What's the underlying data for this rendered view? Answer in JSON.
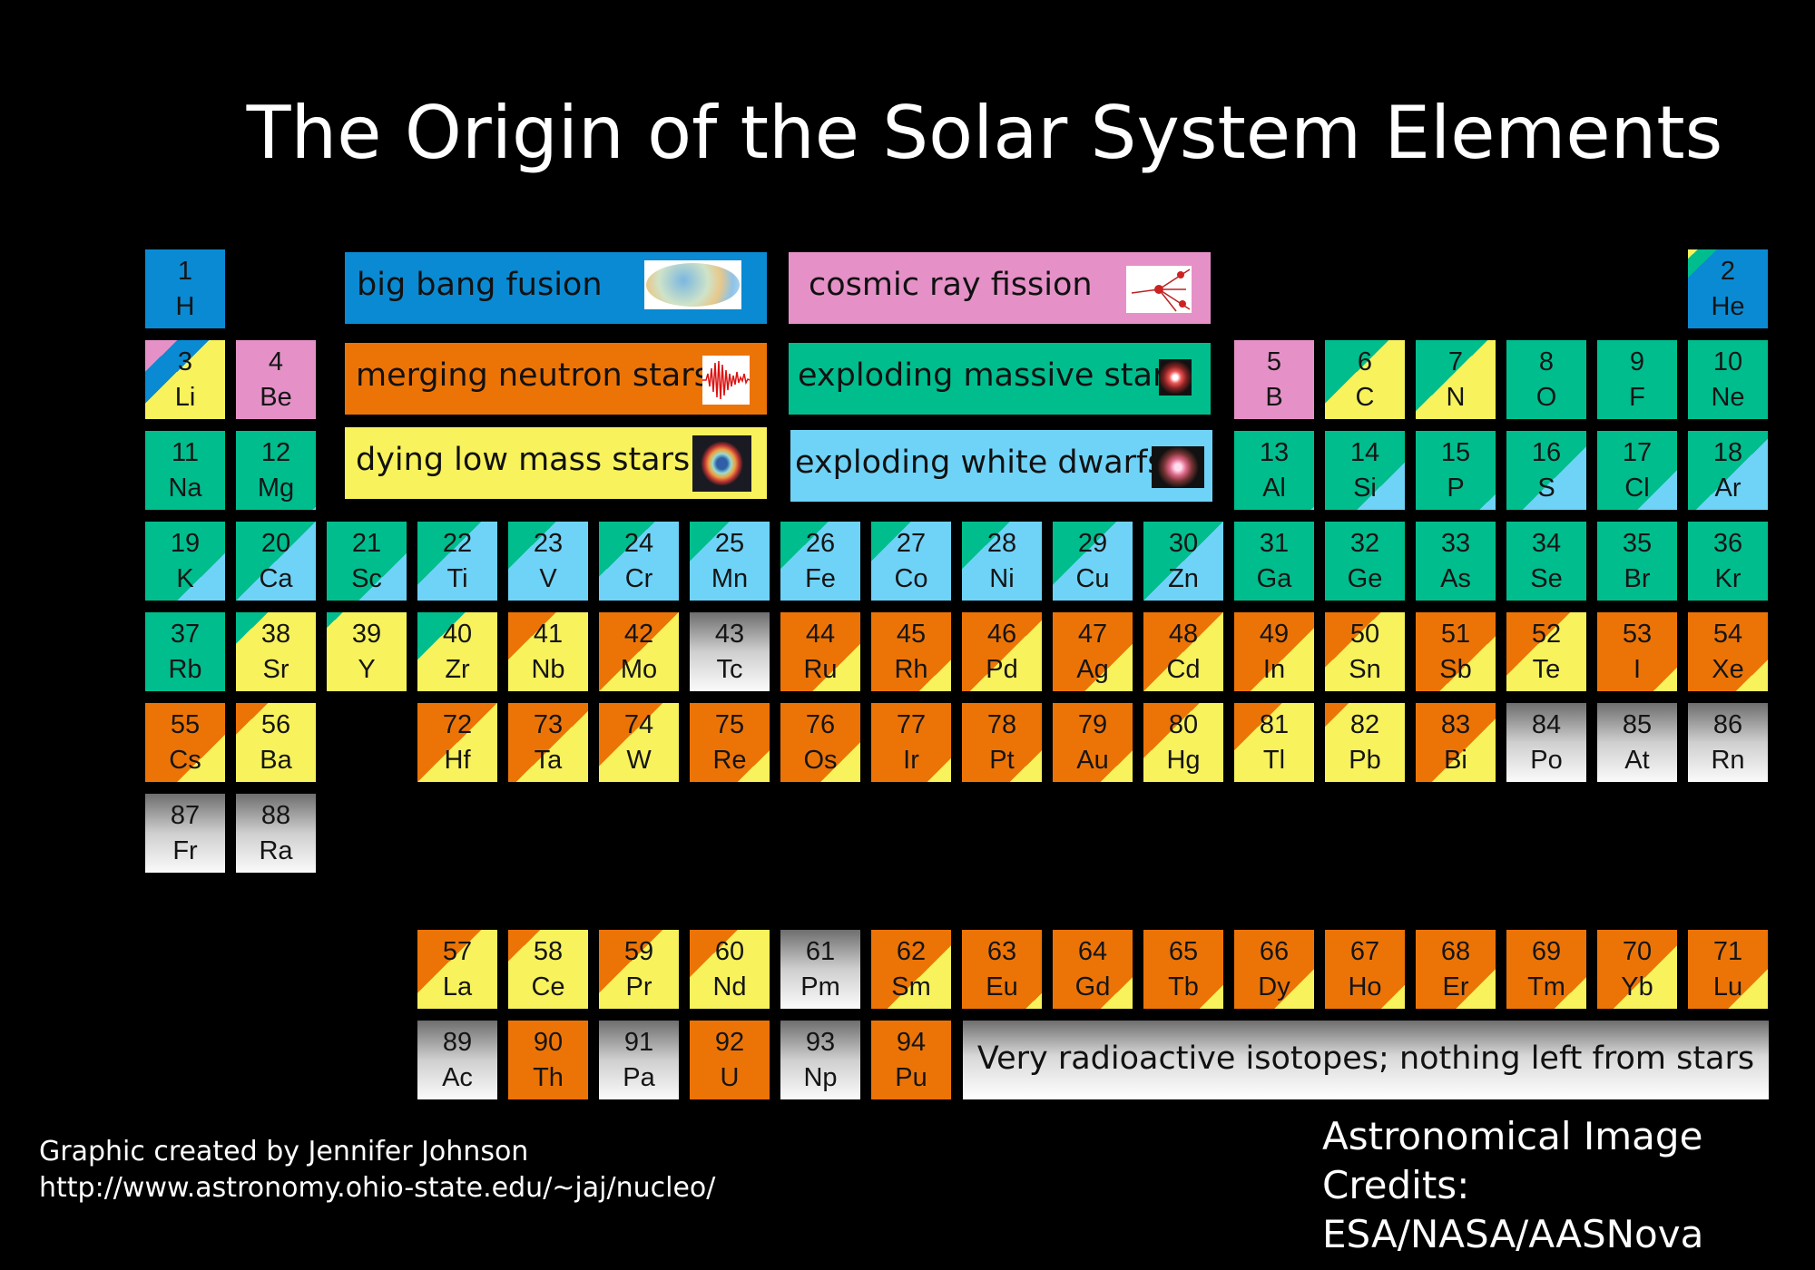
{
  "title": "The Origin of the Solar System Elements",
  "colors": {
    "bigbang": "#0a8ad3",
    "cosmic": "#e591c8",
    "neutron": "#ec7407",
    "massive": "#00bd8e",
    "lowmass": "#f8f25c",
    "whitedwarf": "#6fd3f7",
    "radioactive": "gray-gradient"
  },
  "legend": {
    "bigbang": {
      "label": "big bang fusion",
      "icon": "cosmic-microwave-background-image"
    },
    "cosmic": {
      "label": "cosmic ray fission",
      "icon": "cosmic-ray-collision-image"
    },
    "neutron": {
      "label": "merging neutron stars?",
      "icon": "gravitational-wave-image"
    },
    "massive": {
      "label": "exploding massive stars",
      "icon": "supernova-remnant-image"
    },
    "lowmass": {
      "label": "dying low mass stars",
      "icon": "planetary-nebula-image"
    },
    "whitedwarf": {
      "label": "exploding white dwarfs",
      "icon": "white-dwarf-supernova-image"
    }
  },
  "radioactive_note": "Very radioactive isotopes; nothing left from stars",
  "credits": {
    "author": "Graphic created by Jennifer Johnson",
    "url": "http://www.astronomy.ohio-state.edu/~jaj/nucleo/",
    "image_credits_title": "Astronomical Image Credits:",
    "image_credits": "ESA/NASA/AASNova"
  },
  "elements": [
    {
      "n": "1",
      "s": "H",
      "src": [
        [
          "bigbang",
          1
        ]
      ]
    },
    {
      "n": "2",
      "s": "He",
      "src": [
        [
          "lowmass",
          0.06
        ],
        [
          "massive",
          0.12
        ],
        [
          "bigbang",
          0.82
        ]
      ]
    },
    {
      "n": "3",
      "s": "Li",
      "src": [
        [
          "cosmic",
          0.2
        ],
        [
          "bigbang",
          0.2
        ],
        [
          "lowmass",
          0.6
        ]
      ]
    },
    {
      "n": "4",
      "s": "Be",
      "src": [
        [
          "cosmic",
          1
        ]
      ]
    },
    {
      "n": "5",
      "s": "B",
      "src": [
        [
          "cosmic",
          1
        ]
      ]
    },
    {
      "n": "6",
      "s": "C",
      "src": [
        [
          "massive",
          0.4
        ],
        [
          "lowmass",
          0.6
        ]
      ]
    },
    {
      "n": "7",
      "s": "N",
      "src": [
        [
          "massive",
          0.45
        ],
        [
          "lowmass",
          0.55
        ]
      ]
    },
    {
      "n": "8",
      "s": "O",
      "src": [
        [
          "massive",
          1
        ]
      ]
    },
    {
      "n": "9",
      "s": "F",
      "src": [
        [
          "massive",
          1
        ]
      ]
    },
    {
      "n": "10",
      "s": "Ne",
      "src": [
        [
          "massive",
          1
        ]
      ]
    },
    {
      "n": "11",
      "s": "Na",
      "src": [
        [
          "massive",
          1
        ]
      ]
    },
    {
      "n": "12",
      "s": "Mg",
      "src": [
        [
          "massive",
          0.98
        ],
        [
          "whitedwarf",
          0.02
        ]
      ]
    },
    {
      "n": "13",
      "s": "Al",
      "src": [
        [
          "massive",
          0.98
        ],
        [
          "whitedwarf",
          0.02
        ]
      ]
    },
    {
      "n": "14",
      "s": "Si",
      "src": [
        [
          "massive",
          0.7
        ],
        [
          "whitedwarf",
          0.3
        ]
      ]
    },
    {
      "n": "15",
      "s": "P",
      "src": [
        [
          "massive",
          0.9
        ],
        [
          "whitedwarf",
          0.1
        ]
      ]
    },
    {
      "n": "16",
      "s": "S",
      "src": [
        [
          "massive",
          0.6
        ],
        [
          "whitedwarf",
          0.4
        ]
      ]
    },
    {
      "n": "17",
      "s": "Cl",
      "src": [
        [
          "massive",
          0.75
        ],
        [
          "whitedwarf",
          0.25
        ]
      ]
    },
    {
      "n": "18",
      "s": "Ar",
      "src": [
        [
          "massive",
          0.55
        ],
        [
          "whitedwarf",
          0.45
        ]
      ]
    },
    {
      "n": "19",
      "s": "K",
      "src": [
        [
          "massive",
          0.7
        ],
        [
          "whitedwarf",
          0.3
        ]
      ]
    },
    {
      "n": "20",
      "s": "Ca",
      "src": [
        [
          "massive",
          0.5
        ],
        [
          "whitedwarf",
          0.5
        ]
      ]
    },
    {
      "n": "21",
      "s": "Sc",
      "src": [
        [
          "massive",
          0.7
        ],
        [
          "whitedwarf",
          0.3
        ]
      ]
    },
    {
      "n": "22",
      "s": "Ti",
      "src": [
        [
          "massive",
          0.4
        ],
        [
          "whitedwarf",
          0.6
        ]
      ]
    },
    {
      "n": "23",
      "s": "V",
      "src": [
        [
          "massive",
          0.3
        ],
        [
          "whitedwarf",
          0.7
        ]
      ]
    },
    {
      "n": "24",
      "s": "Cr",
      "src": [
        [
          "massive",
          0.35
        ],
        [
          "whitedwarf",
          0.65
        ]
      ]
    },
    {
      "n": "25",
      "s": "Mn",
      "src": [
        [
          "massive",
          0.25
        ],
        [
          "whitedwarf",
          0.75
        ]
      ]
    },
    {
      "n": "26",
      "s": "Fe",
      "src": [
        [
          "massive",
          0.3
        ],
        [
          "whitedwarf",
          0.7
        ]
      ]
    },
    {
      "n": "27",
      "s": "Co",
      "src": [
        [
          "massive",
          0.25
        ],
        [
          "whitedwarf",
          0.75
        ]
      ]
    },
    {
      "n": "28",
      "s": "Ni",
      "src": [
        [
          "massive",
          0.3
        ],
        [
          "whitedwarf",
          0.7
        ]
      ]
    },
    {
      "n": "29",
      "s": "Cu",
      "src": [
        [
          "massive",
          0.4
        ],
        [
          "whitedwarf",
          0.6
        ]
      ]
    },
    {
      "n": "30",
      "s": "Zn",
      "src": [
        [
          "massive",
          0.5
        ],
        [
          "whitedwarf",
          0.5
        ]
      ]
    },
    {
      "n": "31",
      "s": "Ga",
      "src": [
        [
          "massive",
          1
        ]
      ]
    },
    {
      "n": "32",
      "s": "Ge",
      "src": [
        [
          "massive",
          1
        ]
      ]
    },
    {
      "n": "33",
      "s": "As",
      "src": [
        [
          "massive",
          1
        ]
      ]
    },
    {
      "n": "34",
      "s": "Se",
      "src": [
        [
          "massive",
          1
        ]
      ]
    },
    {
      "n": "35",
      "s": "Br",
      "src": [
        [
          "massive",
          1
        ]
      ]
    },
    {
      "n": "36",
      "s": "Kr",
      "src": [
        [
          "massive",
          1
        ]
      ]
    },
    {
      "n": "37",
      "s": "Rb",
      "src": [
        [
          "massive",
          1
        ]
      ]
    },
    {
      "n": "38",
      "s": "Sr",
      "src": [
        [
          "massive",
          0.2
        ],
        [
          "lowmass",
          0.8
        ]
      ]
    },
    {
      "n": "39",
      "s": "Y",
      "src": [
        [
          "massive",
          0.1
        ],
        [
          "lowmass",
          0.9
        ]
      ]
    },
    {
      "n": "40",
      "s": "Zr",
      "src": [
        [
          "massive",
          0.3
        ],
        [
          "lowmass",
          0.7
        ]
      ]
    },
    {
      "n": "41",
      "s": "Nb",
      "src": [
        [
          "neutron",
          0.3
        ],
        [
          "lowmass",
          0.7
        ]
      ]
    },
    {
      "n": "42",
      "s": "Mo",
      "src": [
        [
          "neutron",
          0.5
        ],
        [
          "lowmass",
          0.5
        ]
      ]
    },
    {
      "n": "43",
      "s": "Tc",
      "src": [
        [
          "radioactive",
          1
        ]
      ]
    },
    {
      "n": "44",
      "s": "Ru",
      "src": [
        [
          "neutron",
          0.7
        ],
        [
          "lowmass",
          0.3
        ]
      ]
    },
    {
      "n": "45",
      "s": "Rh",
      "src": [
        [
          "neutron",
          0.8
        ],
        [
          "lowmass",
          0.2
        ]
      ]
    },
    {
      "n": "46",
      "s": "Pd",
      "src": [
        [
          "neutron",
          0.55
        ],
        [
          "lowmass",
          0.45
        ]
      ]
    },
    {
      "n": "47",
      "s": "Ag",
      "src": [
        [
          "neutron",
          0.7
        ],
        [
          "lowmass",
          0.3
        ]
      ]
    },
    {
      "n": "48",
      "s": "Cd",
      "src": [
        [
          "neutron",
          0.5
        ],
        [
          "lowmass",
          0.5
        ]
      ]
    },
    {
      "n": "49",
      "s": "In",
      "src": [
        [
          "neutron",
          0.6
        ],
        [
          "lowmass",
          0.4
        ]
      ]
    },
    {
      "n": "50",
      "s": "Sn",
      "src": [
        [
          "neutron",
          0.35
        ],
        [
          "lowmass",
          0.65
        ]
      ]
    },
    {
      "n": "51",
      "s": "Sb",
      "src": [
        [
          "neutron",
          0.65
        ],
        [
          "lowmass",
          0.35
        ]
      ]
    },
    {
      "n": "52",
      "s": "Te",
      "src": [
        [
          "neutron",
          0.4
        ],
        [
          "lowmass",
          0.6
        ]
      ]
    },
    {
      "n": "53",
      "s": "I",
      "src": [
        [
          "neutron",
          0.85
        ],
        [
          "lowmass",
          0.15
        ]
      ]
    },
    {
      "n": "54",
      "s": "Xe",
      "src": [
        [
          "neutron",
          0.8
        ],
        [
          "lowmass",
          0.2
        ]
      ]
    },
    {
      "n": "55",
      "s": "Cs",
      "src": [
        [
          "neutron",
          0.7
        ],
        [
          "lowmass",
          0.3
        ]
      ]
    },
    {
      "n": "56",
      "s": "Ba",
      "src": [
        [
          "neutron",
          0.2
        ],
        [
          "lowmass",
          0.8
        ]
      ]
    },
    {
      "n": "57",
      "s": "La",
      "src": [
        [
          "neutron",
          0.4
        ],
        [
          "lowmass",
          0.6
        ]
      ]
    },
    {
      "n": "58",
      "s": "Ce",
      "src": [
        [
          "neutron",
          0.2
        ],
        [
          "lowmass",
          0.8
        ]
      ]
    },
    {
      "n": "59",
      "s": "Pr",
      "src": [
        [
          "neutron",
          0.4
        ],
        [
          "lowmass",
          0.6
        ]
      ]
    },
    {
      "n": "60",
      "s": "Nd",
      "src": [
        [
          "neutron",
          0.3
        ],
        [
          "lowmass",
          0.7
        ]
      ]
    },
    {
      "n": "61",
      "s": "Pm",
      "src": [
        [
          "radioactive",
          1
        ]
      ]
    },
    {
      "n": "62",
      "s": "Sm",
      "src": [
        [
          "neutron",
          0.6
        ],
        [
          "lowmass",
          0.4
        ]
      ]
    },
    {
      "n": "63",
      "s": "Eu",
      "src": [
        [
          "neutron",
          0.9
        ],
        [
          "lowmass",
          0.1
        ]
      ]
    },
    {
      "n": "64",
      "s": "Gd",
      "src": [
        [
          "neutron",
          0.8
        ],
        [
          "lowmass",
          0.2
        ]
      ]
    },
    {
      "n": "65",
      "s": "Tb",
      "src": [
        [
          "neutron",
          0.85
        ],
        [
          "lowmass",
          0.15
        ]
      ]
    },
    {
      "n": "66",
      "s": "Dy",
      "src": [
        [
          "neutron",
          0.75
        ],
        [
          "lowmass",
          0.25
        ]
      ]
    },
    {
      "n": "67",
      "s": "Ho",
      "src": [
        [
          "neutron",
          0.85
        ],
        [
          "lowmass",
          0.15
        ]
      ]
    },
    {
      "n": "68",
      "s": "Er",
      "src": [
        [
          "neutron",
          0.75
        ],
        [
          "lowmass",
          0.25
        ]
      ]
    },
    {
      "n": "69",
      "s": "Tm",
      "src": [
        [
          "neutron",
          0.8
        ],
        [
          "lowmass",
          0.2
        ]
      ]
    },
    {
      "n": "70",
      "s": "Yb",
      "src": [
        [
          "neutron",
          0.6
        ],
        [
          "lowmass",
          0.4
        ]
      ]
    },
    {
      "n": "71",
      "s": "Lu",
      "src": [
        [
          "neutron",
          0.75
        ],
        [
          "lowmass",
          0.25
        ]
      ]
    },
    {
      "n": "72",
      "s": "Hf",
      "src": [
        [
          "neutron",
          0.5
        ],
        [
          "lowmass",
          0.5
        ]
      ]
    },
    {
      "n": "73",
      "s": "Ta",
      "src": [
        [
          "neutron",
          0.55
        ],
        [
          "lowmass",
          0.45
        ]
      ]
    },
    {
      "n": "74",
      "s": "W",
      "src": [
        [
          "neutron",
          0.4
        ],
        [
          "lowmass",
          0.6
        ]
      ]
    },
    {
      "n": "75",
      "s": "Re",
      "src": [
        [
          "neutron",
          0.8
        ],
        [
          "lowmass",
          0.2
        ]
      ]
    },
    {
      "n": "76",
      "s": "Os",
      "src": [
        [
          "neutron",
          0.75
        ],
        [
          "lowmass",
          0.25
        ]
      ]
    },
    {
      "n": "77",
      "s": "Ir",
      "src": [
        [
          "neutron",
          0.85
        ],
        [
          "lowmass",
          0.15
        ]
      ]
    },
    {
      "n": "78",
      "s": "Pt",
      "src": [
        [
          "neutron",
          0.8
        ],
        [
          "lowmass",
          0.2
        ]
      ]
    },
    {
      "n": "79",
      "s": "Au",
      "src": [
        [
          "neutron",
          0.8
        ],
        [
          "lowmass",
          0.2
        ]
      ]
    },
    {
      "n": "80",
      "s": "Hg",
      "src": [
        [
          "neutron",
          0.35
        ],
        [
          "lowmass",
          0.65
        ]
      ]
    },
    {
      "n": "81",
      "s": "Tl",
      "src": [
        [
          "neutron",
          0.3
        ],
        [
          "lowmass",
          0.7
        ]
      ]
    },
    {
      "n": "82",
      "s": "Pb",
      "src": [
        [
          "neutron",
          0.15
        ],
        [
          "lowmass",
          0.85
        ]
      ]
    },
    {
      "n": "83",
      "s": "Bi",
      "src": [
        [
          "neutron",
          0.6
        ],
        [
          "lowmass",
          0.4
        ]
      ]
    },
    {
      "n": "84",
      "s": "Po",
      "src": [
        [
          "radioactive",
          1
        ]
      ]
    },
    {
      "n": "85",
      "s": "At",
      "src": [
        [
          "radioactive",
          1
        ]
      ]
    },
    {
      "n": "86",
      "s": "Rn",
      "src": [
        [
          "radioactive",
          1
        ]
      ]
    },
    {
      "n": "87",
      "s": "Fr",
      "src": [
        [
          "radioactive",
          1
        ]
      ]
    },
    {
      "n": "88",
      "s": "Ra",
      "src": [
        [
          "radioactive",
          1
        ]
      ]
    },
    {
      "n": "89",
      "s": "Ac",
      "src": [
        [
          "radioactive",
          1
        ]
      ]
    },
    {
      "n": "90",
      "s": "Th",
      "src": [
        [
          "neutron",
          1
        ]
      ]
    },
    {
      "n": "91",
      "s": "Pa",
      "src": [
        [
          "radioactive",
          1
        ]
      ]
    },
    {
      "n": "92",
      "s": "U",
      "src": [
        [
          "neutron",
          1
        ]
      ]
    },
    {
      "n": "93",
      "s": "Np",
      "src": [
        [
          "radioactive",
          1
        ]
      ]
    },
    {
      "n": "94",
      "s": "Pu",
      "src": [
        [
          "neutron",
          1
        ]
      ]
    }
  ]
}
